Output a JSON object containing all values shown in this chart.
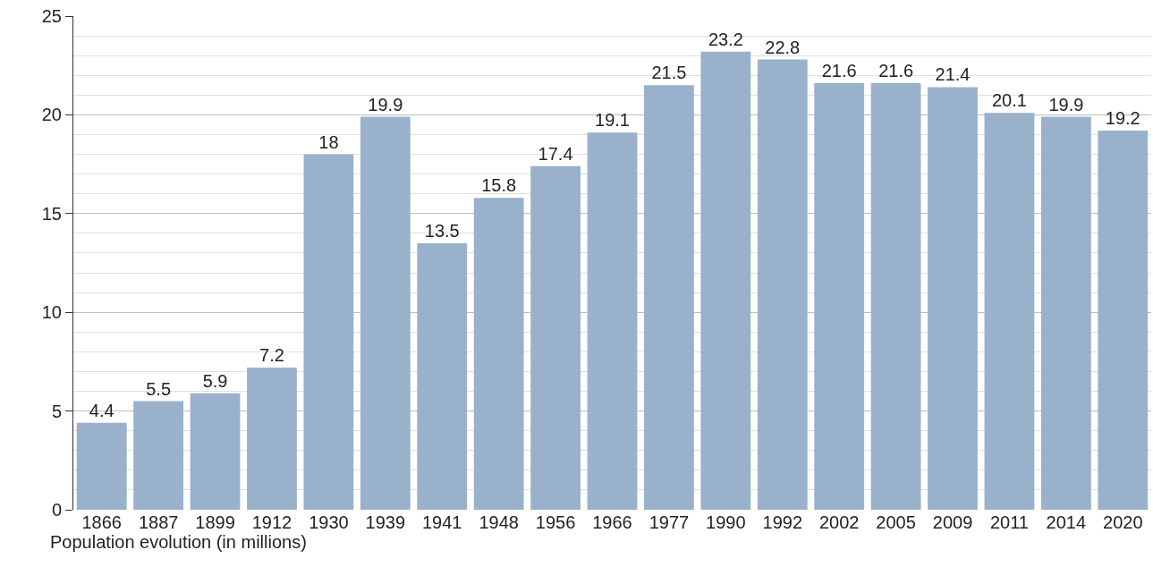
{
  "chart_data": {
    "type": "bar",
    "xlabel": "Population evolution (in millions)",
    "categories": [
      "1866",
      "1887",
      "1899",
      "1912",
      "1930",
      "1939",
      "1941",
      "1948",
      "1956",
      "1966",
      "1977",
      "1990",
      "1992",
      "2002",
      "2005",
      "2009",
      "2011",
      "2014",
      "2020"
    ],
    "values": [
      4.4,
      5.5,
      5.9,
      7.2,
      18,
      19.9,
      13.5,
      15.8,
      17.4,
      19.1,
      21.5,
      23.2,
      22.8,
      21.6,
      21.6,
      21.4,
      20.1,
      19.9,
      19.2
    ],
    "color": "#9ab1cc",
    "ylim": [
      0,
      25
    ],
    "yticks": [
      0,
      5,
      10,
      15,
      20,
      25
    ],
    "grid": "y",
    "data_labels": true,
    "legend": false
  }
}
